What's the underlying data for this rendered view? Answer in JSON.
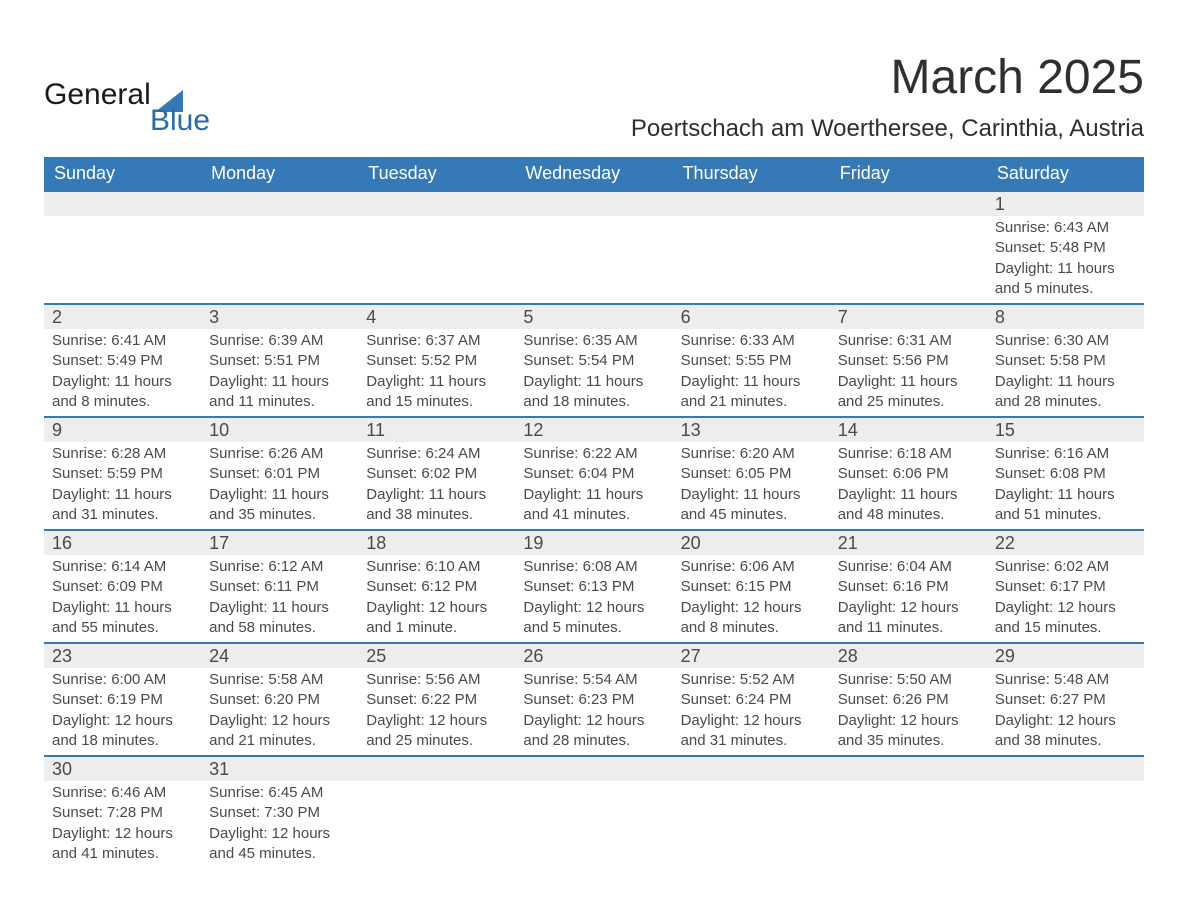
{
  "logo": {
    "text1": "General",
    "text2": "Blue",
    "tri_color": "#357ab7"
  },
  "title": "March 2025",
  "location": "Poertschach am Woerthersee, Carinthia, Austria",
  "header_bg": "#357ab7",
  "header_fg": "#ffffff",
  "row_stripe_bg": "#ededed",
  "border_color": "#357ab7",
  "text_color": "#4a4a4a",
  "title_fontsize": 48,
  "location_fontsize": 24,
  "header_fontsize": 18,
  "daynum_fontsize": 18,
  "body_fontsize": 15,
  "days_of_week": [
    "Sunday",
    "Monday",
    "Tuesday",
    "Wednesday",
    "Thursday",
    "Friday",
    "Saturday"
  ],
  "weeks": [
    [
      null,
      null,
      null,
      null,
      null,
      null,
      {
        "n": "1",
        "sr": "Sunrise: 6:43 AM",
        "ss": "Sunset: 5:48 PM",
        "dl": "Daylight: 11 hours and 5 minutes."
      }
    ],
    [
      {
        "n": "2",
        "sr": "Sunrise: 6:41 AM",
        "ss": "Sunset: 5:49 PM",
        "dl": "Daylight: 11 hours and 8 minutes."
      },
      {
        "n": "3",
        "sr": "Sunrise: 6:39 AM",
        "ss": "Sunset: 5:51 PM",
        "dl": "Daylight: 11 hours and 11 minutes."
      },
      {
        "n": "4",
        "sr": "Sunrise: 6:37 AM",
        "ss": "Sunset: 5:52 PM",
        "dl": "Daylight: 11 hours and 15 minutes."
      },
      {
        "n": "5",
        "sr": "Sunrise: 6:35 AM",
        "ss": "Sunset: 5:54 PM",
        "dl": "Daylight: 11 hours and 18 minutes."
      },
      {
        "n": "6",
        "sr": "Sunrise: 6:33 AM",
        "ss": "Sunset: 5:55 PM",
        "dl": "Daylight: 11 hours and 21 minutes."
      },
      {
        "n": "7",
        "sr": "Sunrise: 6:31 AM",
        "ss": "Sunset: 5:56 PM",
        "dl": "Daylight: 11 hours and 25 minutes."
      },
      {
        "n": "8",
        "sr": "Sunrise: 6:30 AM",
        "ss": "Sunset: 5:58 PM",
        "dl": "Daylight: 11 hours and 28 minutes."
      }
    ],
    [
      {
        "n": "9",
        "sr": "Sunrise: 6:28 AM",
        "ss": "Sunset: 5:59 PM",
        "dl": "Daylight: 11 hours and 31 minutes."
      },
      {
        "n": "10",
        "sr": "Sunrise: 6:26 AM",
        "ss": "Sunset: 6:01 PM",
        "dl": "Daylight: 11 hours and 35 minutes."
      },
      {
        "n": "11",
        "sr": "Sunrise: 6:24 AM",
        "ss": "Sunset: 6:02 PM",
        "dl": "Daylight: 11 hours and 38 minutes."
      },
      {
        "n": "12",
        "sr": "Sunrise: 6:22 AM",
        "ss": "Sunset: 6:04 PM",
        "dl": "Daylight: 11 hours and 41 minutes."
      },
      {
        "n": "13",
        "sr": "Sunrise: 6:20 AM",
        "ss": "Sunset: 6:05 PM",
        "dl": "Daylight: 11 hours and 45 minutes."
      },
      {
        "n": "14",
        "sr": "Sunrise: 6:18 AM",
        "ss": "Sunset: 6:06 PM",
        "dl": "Daylight: 11 hours and 48 minutes."
      },
      {
        "n": "15",
        "sr": "Sunrise: 6:16 AM",
        "ss": "Sunset: 6:08 PM",
        "dl": "Daylight: 11 hours and 51 minutes."
      }
    ],
    [
      {
        "n": "16",
        "sr": "Sunrise: 6:14 AM",
        "ss": "Sunset: 6:09 PM",
        "dl": "Daylight: 11 hours and 55 minutes."
      },
      {
        "n": "17",
        "sr": "Sunrise: 6:12 AM",
        "ss": "Sunset: 6:11 PM",
        "dl": "Daylight: 11 hours and 58 minutes."
      },
      {
        "n": "18",
        "sr": "Sunrise: 6:10 AM",
        "ss": "Sunset: 6:12 PM",
        "dl": "Daylight: 12 hours and 1 minute."
      },
      {
        "n": "19",
        "sr": "Sunrise: 6:08 AM",
        "ss": "Sunset: 6:13 PM",
        "dl": "Daylight: 12 hours and 5 minutes."
      },
      {
        "n": "20",
        "sr": "Sunrise: 6:06 AM",
        "ss": "Sunset: 6:15 PM",
        "dl": "Daylight: 12 hours and 8 minutes."
      },
      {
        "n": "21",
        "sr": "Sunrise: 6:04 AM",
        "ss": "Sunset: 6:16 PM",
        "dl": "Daylight: 12 hours and 11 minutes."
      },
      {
        "n": "22",
        "sr": "Sunrise: 6:02 AM",
        "ss": "Sunset: 6:17 PM",
        "dl": "Daylight: 12 hours and 15 minutes."
      }
    ],
    [
      {
        "n": "23",
        "sr": "Sunrise: 6:00 AM",
        "ss": "Sunset: 6:19 PM",
        "dl": "Daylight: 12 hours and 18 minutes."
      },
      {
        "n": "24",
        "sr": "Sunrise: 5:58 AM",
        "ss": "Sunset: 6:20 PM",
        "dl": "Daylight: 12 hours and 21 minutes."
      },
      {
        "n": "25",
        "sr": "Sunrise: 5:56 AM",
        "ss": "Sunset: 6:22 PM",
        "dl": "Daylight: 12 hours and 25 minutes."
      },
      {
        "n": "26",
        "sr": "Sunrise: 5:54 AM",
        "ss": "Sunset: 6:23 PM",
        "dl": "Daylight: 12 hours and 28 minutes."
      },
      {
        "n": "27",
        "sr": "Sunrise: 5:52 AM",
        "ss": "Sunset: 6:24 PM",
        "dl": "Daylight: 12 hours and 31 minutes."
      },
      {
        "n": "28",
        "sr": "Sunrise: 5:50 AM",
        "ss": "Sunset: 6:26 PM",
        "dl": "Daylight: 12 hours and 35 minutes."
      },
      {
        "n": "29",
        "sr": "Sunrise: 5:48 AM",
        "ss": "Sunset: 6:27 PM",
        "dl": "Daylight: 12 hours and 38 minutes."
      }
    ],
    [
      {
        "n": "30",
        "sr": "Sunrise: 6:46 AM",
        "ss": "Sunset: 7:28 PM",
        "dl": "Daylight: 12 hours and 41 minutes."
      },
      {
        "n": "31",
        "sr": "Sunrise: 6:45 AM",
        "ss": "Sunset: 7:30 PM",
        "dl": "Daylight: 12 hours and 45 minutes."
      },
      null,
      null,
      null,
      null,
      null
    ]
  ]
}
